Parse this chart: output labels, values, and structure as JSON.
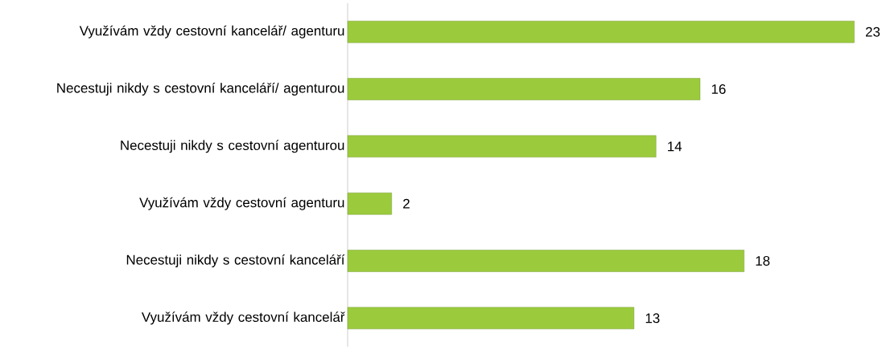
{
  "chart_data": {
    "type": "bar",
    "orientation": "horizontal",
    "categories": [
      "Využívám vždy cestovní kancelář/ agenturu",
      "Necestuji nikdy s cestovní kanceláří/ agenturou",
      "Necestuji nikdy s cestovní agenturou",
      "Využívám vždy cestovní agenturu",
      "Necestuji nikdy s cestovní kanceláří",
      "Využívám vždy cestovní kancelář"
    ],
    "values": [
      23,
      16,
      14,
      2,
      18,
      13
    ],
    "color": "#9bcb3c",
    "data_labels": true
  }
}
